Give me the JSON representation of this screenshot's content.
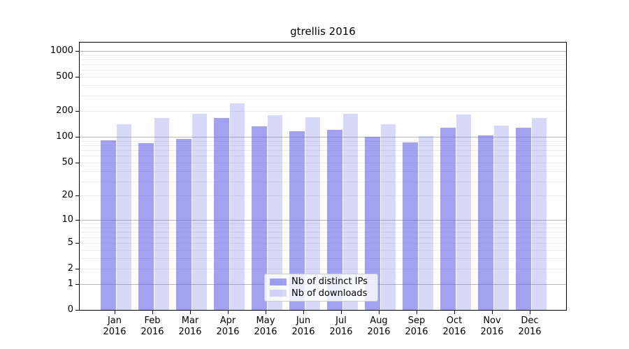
{
  "chart_data": {
    "type": "bar",
    "title": "gtrellis 2016",
    "x": {
      "months": [
        "Jan",
        "Feb",
        "Mar",
        "Apr",
        "May",
        "Jun",
        "Jul",
        "Aug",
        "Sep",
        "Oct",
        "Nov",
        "Dec"
      ],
      "year": "2016"
    },
    "series": [
      {
        "name": "Nb of distinct IPs",
        "color": "rgba(100,100,230,0.6)",
        "values": [
          92,
          85,
          95,
          165,
          133,
          116,
          121,
          100,
          87,
          129,
          104,
          127
        ]
      },
      {
        "name": "Nb of downloads",
        "color": "rgba(100,100,230,0.25)",
        "values": [
          140,
          165,
          185,
          245,
          180,
          168,
          187,
          140,
          103,
          181,
          135,
          165
        ]
      }
    ],
    "y_axis": {
      "scale": "log(1+x)",
      "tick_values": [
        0,
        1,
        2,
        5,
        10,
        20,
        50,
        100,
        200,
        500,
        1000
      ],
      "range": [
        0,
        1000
      ]
    },
    "grid": {
      "enabled": true,
      "major_at": [
        1,
        10,
        100,
        1000
      ],
      "minor_at": [
        2,
        3,
        4,
        5,
        6,
        7,
        8,
        9,
        20,
        30,
        40,
        50,
        60,
        70,
        80,
        90,
        200,
        300,
        400,
        500,
        600,
        700,
        800,
        900
      ],
      "major_color": "#b8b8b8",
      "minor_color": "#ebebeb"
    },
    "legend": {
      "location": "lower center inside plot"
    },
    "colors": {
      "distinct_ips_bar": "rgba(100,100,230,0.6)",
      "downloads_bar": "rgba(100,100,230,0.25)",
      "spine": "#000000"
    }
  }
}
